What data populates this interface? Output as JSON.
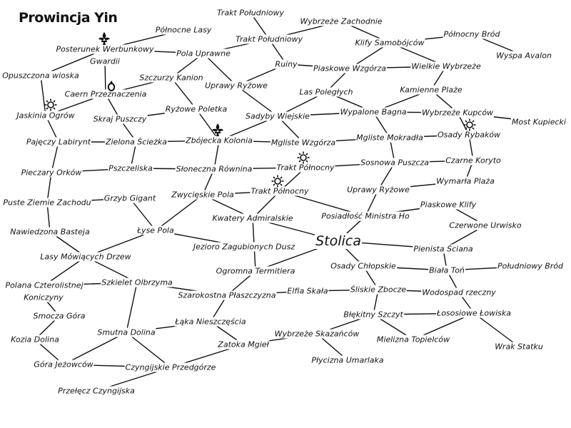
{
  "title": "Prowincja Yin",
  "capital": "Stolica",
  "places": {
    "trakt_poludniowy_top": "Trakt Południowy",
    "wybrzeze_zachodnie": "Wybrzeże Zachodnie",
    "polnocne_lasy": "Północne Lasy",
    "trakt_poludniowy": "Trakt Południowy",
    "klify_samobojcow": "Klify Samobójców",
    "polnocny_brod": "Północny Bród",
    "posterunek": "Posterunek Werbunkowy",
    "pola_uprawne": "Pola Uprawne",
    "wyspa_avalon": "Wyspa Avalon",
    "gwardii": "Gwardii",
    "ruiny": "Ruiny",
    "piaskowe_wzgorza": "Piaskowe Wzgórza",
    "wielkie_wybrzeze": "Wielkie Wybrzeże",
    "opuszczona_wioska": "Opuszczona wioska",
    "szczurzy_kanion": "Szczurzy Kanion",
    "uprawy_ryzowe_top": "Uprawy Ryżowe",
    "las_poleglych": "Las Poległych",
    "kamienne_plaze": "Kamienne Plaże",
    "caern": "Caern Przeznaczenia",
    "jaskinia_ogrow": "Jaskinia Ogrów",
    "skraj_puszczy": "Skraj Puszczy",
    "ryzowe_poletka": "Ryżowe Poletka",
    "sadyby_wiejskie": "Sadyby Wiejskie",
    "wypalone_bagna": "Wypalone Bagna",
    "wybrzeze_kupcow": "Wybrzeże Kupców",
    "most_kupiecki": "Most Kupiecki",
    "osady_rybakow": "Osady Rybaków",
    "pajeczy_labirynt": "Pajęczy Labirynt",
    "zielona_sciezka": "Zielona Ścieżka",
    "zbojecka_kolonia": "Zbójecka Kolonia",
    "mgliste_wzgorza": "Mgliste Wzgórza",
    "mgliste_mokradla": "Mgliste Mokradła",
    "pieczary_orkow": "Pieczary Orków",
    "pszczeliska": "Pszczeliska",
    "sloneczna_rownina": "Słoneczna Równina",
    "trakt_polnocny_1": "Trakt Północny",
    "sosnowa_puszcza": "Sosnowa Puszcza",
    "czarne_koryto": "Czarne Koryto",
    "wymarla_plaza": "Wymarła Plaża",
    "zwycieskie_pola": "Zwycięskie Pola",
    "trakt_polnocny_2": "Trakt Północny",
    "uprawy_ryzowe": "Uprawy Ryżowe",
    "puste_ziemie": "Puste Ziemie Zachodu",
    "grzyb_gigant": "Grzyb Gigant",
    "posiadlosc": "Posiadłość Ministra Ho",
    "piaskowe_klify": "Piaskowe Klify",
    "kwatery": "Kwatery Admiralskie",
    "nawiedzona": "Nawiedzona Basteja",
    "lyse_pola": "Łyse Pola",
    "czerwone_urwisko": "Czerwone Urwisko",
    "jezioro": "Jezioro Zagubionych Dusz",
    "pienista": "Pienista Ściana",
    "lasy_mowiacych": "Lasy Mówiących Drzew",
    "osady_chlopskie": "Osady Chłopskie",
    "biala_ton": "Biała Toń",
    "poludniowy_brod": "Południowy Bród",
    "ogromna_termitiera": "Ogromna Termitiera",
    "polana": "Polana Czterolistnej",
    "szkielet": "Szkielet Olbrzyma",
    "koniczyny": "Koniczyny",
    "elfia_skala": "Elfia Skała",
    "sliskie_zbocze": "Śliskie Zbocze",
    "wodospad": "Wodospad rzeczny",
    "szarokostna": "Szarokostna Płaszczyzna",
    "smocza_gora": "Smocza Góra",
    "blekitny_szczyt": "Błękitny Szczyt",
    "lososiowe": "Łososiowe Łowiska",
    "laka": "Łąka Nieszczęścia",
    "smutna_dolina": "Smutna Dolina",
    "kozia_dolina": "Kozia Dolina",
    "wybrzeze_skazancow": "Wybrzeże Skazańców",
    "mielizna": "Mielizna Topielców",
    "zatoka_mgiel": "Zatoka Mgieł",
    "wrak_statku": "Wrak Statku",
    "gora_jezowcow": "Góra Jeżowców",
    "plycizna": "Płycizna Umarlaka",
    "czyngijskie": "Czyngijskie Przedgórze",
    "przelecz": "Przełęcz Czyngijska"
  },
  "edges": [
    [
      "trakt_poludniowy_top",
      "trakt_poludniowy"
    ],
    [
      "trakt_poludniowy",
      "wybrzeze_zachodnie"
    ],
    [
      "trakt_poludniowy",
      "pola_uprawne"
    ],
    [
      "trakt_poludniowy",
      "ruiny"
    ],
    [
      "wybrzeze_zachodnie",
      "klify_samobojcow"
    ],
    [
      "klify_samobojcow",
      "polnocny_brod"
    ],
    [
      "klify_samobojcow",
      "piaskowe_wzgorza"
    ],
    [
      "klify_samobojcow",
      "wielkie_wybrzeze"
    ],
    [
      "polnocny_brod",
      "wyspa_avalon"
    ],
    [
      "polnocne_lasy",
      "posterunek"
    ],
    [
      "posterunek",
      "pola_uprawne"
    ],
    [
      "posterunek",
      "opuszczona_wioska"
    ],
    [
      "pola_uprawne",
      "szczurzy_kanion"
    ],
    [
      "pola_uprawne",
      "uprawy_ryzowe_top"
    ],
    [
      "szczurzy_kanion",
      "caern"
    ],
    [
      "szczurzy_kanion",
      "ryzowe_poletka"
    ],
    [
      "ruiny",
      "piaskowe_wzgorza"
    ],
    [
      "ruiny",
      "uprawy_ryzowe_top"
    ],
    [
      "piaskowe_wzgorza",
      "wielkie_wybrzeze"
    ],
    [
      "piaskowe_wzgorza",
      "las_poleglych"
    ],
    [
      "wielkie_wybrzeze",
      "kamienne_plaze"
    ],
    [
      "uprawy_ryzowe_top",
      "sadyby_wiejskie"
    ],
    [
      "las_poleglych",
      "sadyby_wiejskie"
    ],
    [
      "las_poleglych",
      "wypalone_bagna"
    ],
    [
      "kamienne_plaze",
      "wypalone_bagna"
    ],
    [
      "kamienne_plaze",
      "wybrzeze_kupcow"
    ],
    [
      "opuszczona_wioska",
      "jaskinia_ogrow"
    ],
    [
      "gwardii",
      "caern"
    ],
    [
      "caern",
      "jaskinia_ogrow"
    ],
    [
      "caern",
      "skraj_puszczy"
    ],
    [
      "skraj_puszczy",
      "ryzowe_poletka"
    ],
    [
      "skraj_puszczy",
      "zielona_sciezka"
    ],
    [
      "ryzowe_poletka",
      "zbojecka_kolonia"
    ],
    [
      "sadyby_wiejskie",
      "zbojecka_kolonia"
    ],
    [
      "sadyby_wiejskie",
      "wypalone_bagna"
    ],
    [
      "sadyby_wiejskie",
      "mgliste_wzgorza"
    ],
    [
      "wypalone_bagna",
      "wybrzeze_kupcow"
    ],
    [
      "wypalone_bagna",
      "mgliste_mokradla"
    ],
    [
      "wybrzeze_kupcow",
      "most_kupiecki"
    ],
    [
      "wybrzeze_kupcow",
      "osady_rybakow"
    ],
    [
      "jaskinia_ogrow",
      "pajeczy_labirynt"
    ],
    [
      "pajeczy_labirynt",
      "zielona_sciezka"
    ],
    [
      "pajeczy_labirynt",
      "pieczary_orkow"
    ],
    [
      "zielona_sciezka",
      "zbojecka_kolonia"
    ],
    [
      "zielona_sciezka",
      "pszczeliska"
    ],
    [
      "zbojecka_kolonia",
      "mgliste_wzgorza"
    ],
    [
      "zbojecka_kolonia",
      "sloneczna_rownina"
    ],
    [
      "mgliste_wzgorza",
      "mgliste_mokradla"
    ],
    [
      "mgliste_mokradla",
      "osady_rybakow"
    ],
    [
      "mgliste_mokradla",
      "sosnowa_puszcza"
    ],
    [
      "osady_rybakow",
      "czarne_koryto"
    ],
    [
      "pieczary_orkow",
      "pszczeliska"
    ],
    [
      "pieczary_orkow",
      "puste_ziemie"
    ],
    [
      "pszczeliska",
      "sloneczna_rownina"
    ],
    [
      "sloneczna_rownina",
      "trakt_polnocny_1"
    ],
    [
      "trakt_polnocny_1",
      "sosnowa_puszcza"
    ],
    [
      "trakt_polnocny_1",
      "trakt_polnocny_2"
    ],
    [
      "sosnowa_puszcza",
      "czarne_koryto"
    ],
    [
      "sosnowa_puszcza",
      "uprawy_ryzowe"
    ],
    [
      "czarne_koryto",
      "wymarla_plaza"
    ],
    [
      "wymarla_plaza",
      "uprawy_ryzowe"
    ],
    [
      "sloneczna_rownina",
      "zwycieskie_pola"
    ],
    [
      "zwycieskie_pola",
      "trakt_polnocny_2"
    ],
    [
      "zwycieskie_pola",
      "kwatery"
    ],
    [
      "zwycieskie_pola",
      "lyse_pola"
    ],
    [
      "trakt_polnocny_2",
      "kwatery"
    ],
    [
      "trakt_polnocny_2",
      "posiadlosc"
    ],
    [
      "uprawy_ryzowe",
      "posiadlosc"
    ],
    [
      "posiadlosc",
      "piaskowe_klify"
    ],
    [
      "posiadlosc",
      "capital"
    ],
    [
      "piaskowe_klify",
      "czerwone_urwisko"
    ],
    [
      "puste_ziemie",
      "grzyb_gigant"
    ],
    [
      "puste_ziemie",
      "nawiedzona"
    ],
    [
      "grzyb_gigant",
      "lyse_pola"
    ],
    [
      "kwatery",
      "capital"
    ],
    [
      "kwatery",
      "ogromna_termitiera"
    ],
    [
      "lyse_pola",
      "jezioro"
    ],
    [
      "lyse_pola",
      "lasy_mowiacych"
    ],
    [
      "nawiedzona",
      "lasy_mowiacych"
    ],
    [
      "capital",
      "pienista"
    ],
    [
      "capital",
      "osady_chlopskie"
    ],
    [
      "capital",
      "ogromna_termitiera"
    ],
    [
      "czerwone_urwisko",
      "pienista"
    ],
    [
      "pienista",
      "biala_ton"
    ],
    [
      "biala_ton",
      "poludniowy_brod"
    ],
    [
      "biala_ton",
      "wodospad"
    ],
    [
      "osady_chlopskie",
      "biala_ton"
    ],
    [
      "osady_chlopskie",
      "sliskie_zbocze"
    ],
    [
      "lasy_mowiacych",
      "polana"
    ],
    [
      "lasy_mowiacych",
      "szkielet"
    ],
    [
      "ogromna_termitiera",
      "szarokostna"
    ],
    [
      "polana",
      "szkielet"
    ],
    [
      "szkielet",
      "szarokostna"
    ],
    [
      "szkielet",
      "smutna_dolina"
    ],
    [
      "koniczyny",
      "smocza_gora"
    ],
    [
      "szarokostna",
      "elfia_skala"
    ],
    [
      "elfia_skala",
      "sliskie_zbocze"
    ],
    [
      "sliskie_zbocze",
      "wodospad"
    ],
    [
      "sliskie_zbocze",
      "blekitny_szczyt"
    ],
    [
      "wodospad",
      "lososiowe"
    ],
    [
      "szarokostna",
      "laka"
    ],
    [
      "smocza_gora",
      "kozia_dolina"
    ],
    [
      "blekitny_szczyt",
      "lososiowe"
    ],
    [
      "blekitny_szczyt",
      "mielizna"
    ],
    [
      "blekitny_szczyt",
      "wybrzeze_skazancow"
    ],
    [
      "lososiowe",
      "mielizna"
    ],
    [
      "lososiowe",
      "wrak_statku"
    ],
    [
      "laka",
      "smutna_dolina"
    ],
    [
      "laka",
      "zatoka_mgiel"
    ],
    [
      "smutna_dolina",
      "gora_jezowcow"
    ],
    [
      "smutna_dolina",
      "czyngijskie"
    ],
    [
      "kozia_dolina",
      "gora_jezowcow"
    ],
    [
      "wybrzeze_skazancow",
      "zatoka_mgiel"
    ],
    [
      "wybrzeze_skazancow",
      "plycizna"
    ],
    [
      "zatoka_mgiel",
      "czyngijskie"
    ],
    [
      "gora_jezowcow",
      "czyngijskie"
    ],
    [
      "czyngijskie",
      "przelecz"
    ]
  ],
  "markers": {
    "fleur_posterunek": "fleur-de-lis-icon",
    "fleur_zbojecka": "fleur-de-lis-icon",
    "sun_jaskinia": "sun-icon",
    "sun_trakt_1": "sun-icon",
    "sun_trakt_2": "sun-icon",
    "sun_osady": "sun-icon",
    "ring_caern": "ring-icon"
  }
}
